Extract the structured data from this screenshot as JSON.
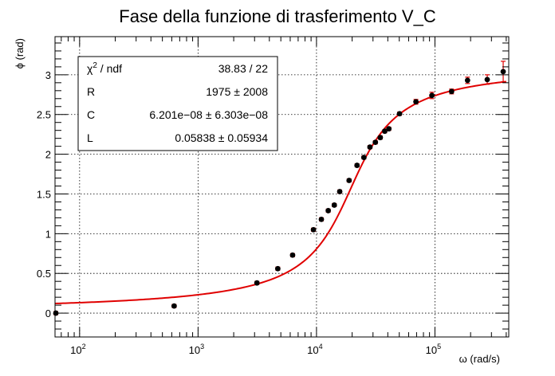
{
  "chart_data": {
    "type": "scatter",
    "title": "Fase della funzione di trasferimento V_C",
    "xlabel": "ω (rad/s)",
    "ylabel": "ϕ (rad)",
    "xscale": "log",
    "xlim": [
      62,
      420000
    ],
    "ylim": [
      -0.3,
      3.48
    ],
    "grid": true,
    "x_ticks": [
      {
        "value": 100,
        "base": "10",
        "exp": "2"
      },
      {
        "value": 1000,
        "base": "10",
        "exp": "3"
      },
      {
        "value": 10000,
        "base": "10",
        "exp": "4"
      },
      {
        "value": 100000,
        "base": "10",
        "exp": "5"
      }
    ],
    "y_ticks": [
      {
        "value": 0,
        "label": "0"
      },
      {
        "value": 0.5,
        "label": "0.5"
      },
      {
        "value": 1,
        "label": "1"
      },
      {
        "value": 1.5,
        "label": "1.5"
      },
      {
        "value": 2,
        "label": "2"
      },
      {
        "value": 2.5,
        "label": "2.5"
      },
      {
        "value": 3,
        "label": "3"
      }
    ],
    "points": [
      {
        "x": 63,
        "y": 0.0,
        "err": 0.02
      },
      {
        "x": 628,
        "y": 0.09,
        "err": 0.02
      },
      {
        "x": 3141,
        "y": 0.38,
        "err": 0.02
      },
      {
        "x": 4712,
        "y": 0.56,
        "err": 0.02
      },
      {
        "x": 6283,
        "y": 0.73,
        "err": 0.02
      },
      {
        "x": 9425,
        "y": 1.05,
        "err": 0.02
      },
      {
        "x": 10995,
        "y": 1.18,
        "err": 0.02
      },
      {
        "x": 12566,
        "y": 1.29,
        "err": 0.02
      },
      {
        "x": 14137,
        "y": 1.36,
        "err": 0.02
      },
      {
        "x": 15708,
        "y": 1.53,
        "err": 0.02
      },
      {
        "x": 18850,
        "y": 1.67,
        "err": 0.02
      },
      {
        "x": 21991,
        "y": 1.86,
        "err": 0.02
      },
      {
        "x": 25133,
        "y": 1.96,
        "err": 0.02
      },
      {
        "x": 28274,
        "y": 2.09,
        "err": 0.02
      },
      {
        "x": 31416,
        "y": 2.15,
        "err": 0.02
      },
      {
        "x": 34558,
        "y": 2.21,
        "err": 0.02
      },
      {
        "x": 37699,
        "y": 2.29,
        "err": 0.02
      },
      {
        "x": 40841,
        "y": 2.32,
        "err": 0.02
      },
      {
        "x": 50265,
        "y": 2.51,
        "err": 0.02
      },
      {
        "x": 69115,
        "y": 2.66,
        "err": 0.03
      },
      {
        "x": 94248,
        "y": 2.74,
        "err": 0.04
      },
      {
        "x": 138230,
        "y": 2.79,
        "err": 0.03
      },
      {
        "x": 188496,
        "y": 2.93,
        "err": 0.04
      },
      {
        "x": 276460,
        "y": 2.94,
        "err": 0.06
      },
      {
        "x": 376991,
        "y": 3.04,
        "err": 0.13
      }
    ],
    "fit": {
      "color": "#e00000",
      "f0": 19500,
      "steepness": 1.43,
      "xlim": [
        62,
        400000
      ]
    },
    "stats_box": {
      "placement": "top-left",
      "rows": [
        {
          "name": "χ",
          "sup": "2",
          "name_suffix": " / ndf",
          "value": "38.83 / 22"
        },
        {
          "name": "R",
          "sup": "",
          "name_suffix": "",
          "value": "1975 ±  2008"
        },
        {
          "name": "C",
          "sup": "",
          "name_suffix": "",
          "value": "6.201e−08 ± 6.303e−08"
        },
        {
          "name": "L",
          "sup": "",
          "name_suffix": "",
          "value": "0.05838 ± 0.05934"
        }
      ]
    },
    "marker_color": "#000000",
    "error_bar_color": "#e00000"
  }
}
